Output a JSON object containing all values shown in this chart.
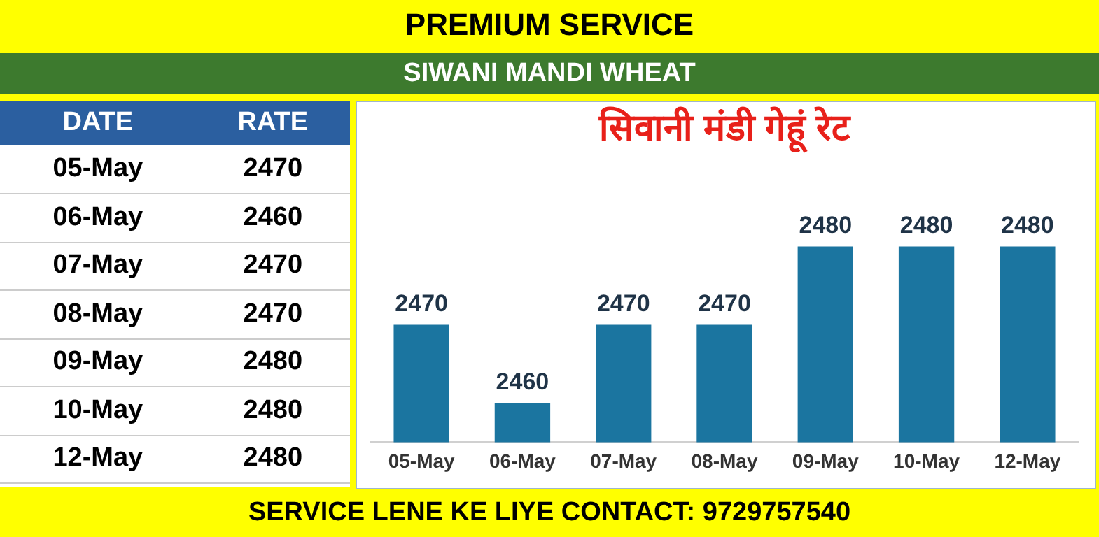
{
  "chart_data": {
    "type": "bar",
    "title": "सिवानी मंडी गेहूं रेट",
    "subtitle": "SIWANI MANDI WHEAT",
    "annotations": [
      "PREMIUM SERVICE",
      "DATE",
      "RATE",
      "SERVICE LENE KE LIYE CONTACT: 9729757540"
    ],
    "categories": [
      "05-May",
      "06-May",
      "07-May",
      "08-May",
      "09-May",
      "10-May",
      "12-May"
    ],
    "values": [
      2470,
      2460,
      2470,
      2470,
      2480,
      2480,
      2480
    ],
    "value_labels": [
      "2470",
      "2460",
      "2470",
      "2470",
      "2480",
      "2480",
      "2480"
    ],
    "color": "#1b75a0",
    "tick_labels": "x",
    "grid": false,
    "legend": false
  }
}
